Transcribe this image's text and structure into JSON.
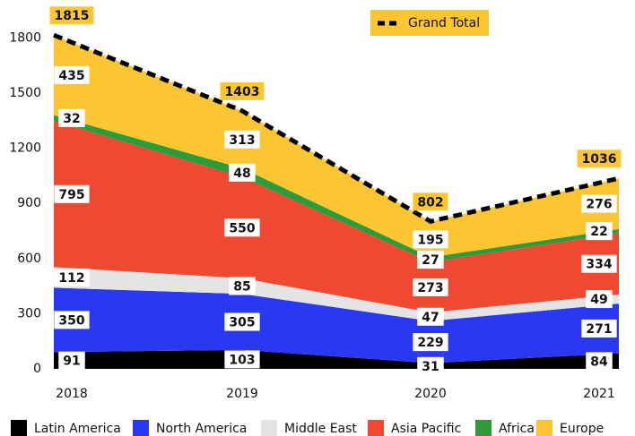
{
  "chart_data": {
    "type": "stacked_area",
    "categories": [
      "2018",
      "2019",
      "2020",
      "2021"
    ],
    "series": [
      {
        "name": "Latin America",
        "color": "#000000",
        "values": [
          91,
          103,
          31,
          84
        ]
      },
      {
        "name": "North America",
        "color": "#2b38f2",
        "values": [
          350,
          305,
          229,
          271
        ]
      },
      {
        "name": "Middle East",
        "color": "#e4e4e4",
        "values": [
          112,
          85,
          47,
          49
        ]
      },
      {
        "name": "Asia Pacific",
        "color": "#f04932",
        "values": [
          795,
          550,
          273,
          334
        ]
      },
      {
        "name": "Africa",
        "color": "#2e9b3a",
        "values": [
          32,
          48,
          27,
          22
        ]
      },
      {
        "name": "Europe",
        "color": "#fbc632",
        "values": [
          435,
          313,
          195,
          276
        ]
      }
    ],
    "total": {
      "name": "Grand Total",
      "color": "#000000",
      "values": [
        1815,
        1403,
        802,
        1036
      ]
    },
    "ylim": [
      0,
      1860
    ],
    "yticks": [
      0,
      300,
      600,
      900,
      1200,
      1500,
      1800
    ],
    "grid": false
  }
}
